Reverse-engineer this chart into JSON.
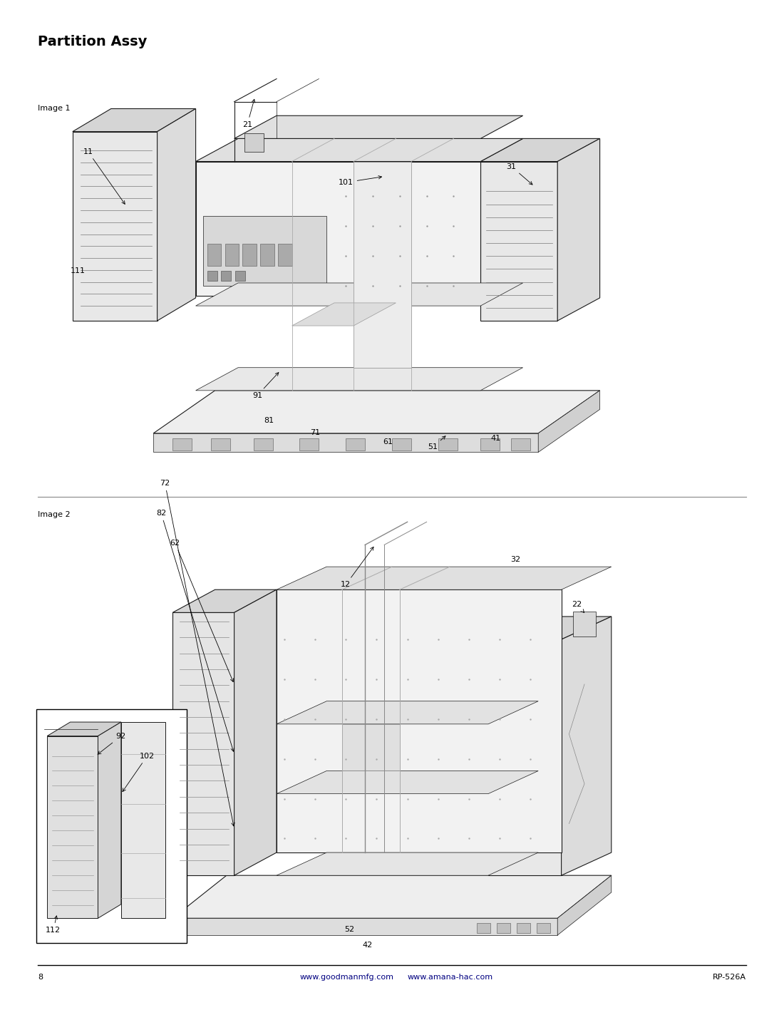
{
  "title": "Partition Assy",
  "page_number": "8",
  "website1": "www.goodmanmfg.com",
  "website2": "www.amana-hac.com",
  "model": "RP-526A",
  "image1_label": "Image 1",
  "image2_label": "Image 2",
  "bg_color": "#ffffff",
  "line_color": "#000000",
  "title_fontsize": 14,
  "label_fontsize": 8,
  "image_label_fontsize": 8,
  "footer_fontsize": 8
}
